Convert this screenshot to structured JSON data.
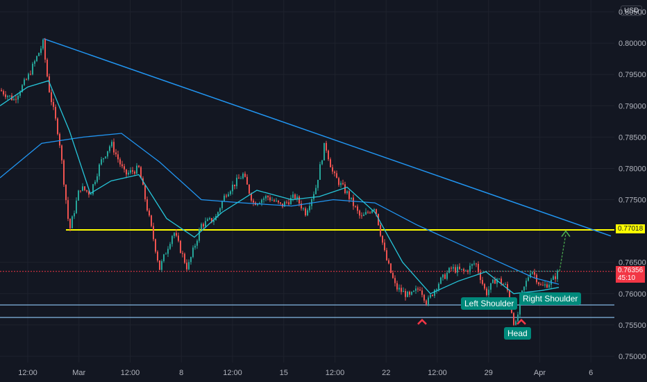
{
  "currency_button": "USD",
  "chart_data": {
    "type": "candlestick",
    "y_ticks": [
      "0.80500",
      "0.80000",
      "0.79500",
      "0.79000",
      "0.78500",
      "0.78000",
      "0.77500",
      "0.76500",
      "0.76000",
      "0.75500",
      "0.75000"
    ],
    "x_ticks": [
      "12:00",
      "Mar",
      "12:00",
      "8",
      "12:00",
      "15",
      "12:00",
      "22",
      "12:00",
      "29",
      "Apr",
      "6"
    ],
    "ylim": [
      0.749,
      0.806
    ],
    "support_level": {
      "value": 0.77018,
      "label": "0.77018",
      "color": "#ffff00"
    },
    "current_price": {
      "value": 0.76356,
      "label": "0.76356",
      "countdown": "45:10",
      "color": "#f23645"
    },
    "neckline_band": [
      0.7582,
      0.7562
    ],
    "trendline": [
      {
        "x": 63,
        "y": 0.8007
      },
      {
        "x": 880,
        "y": 0.7692
      }
    ],
    "annotations": [
      {
        "text": "Left Shoulder"
      },
      {
        "text": "Head"
      },
      {
        "text": "Right Shoulder"
      }
    ],
    "price_path": [
      [
        0,
        0.7925
      ],
      [
        20,
        0.791
      ],
      [
        40,
        0.7945
      ],
      [
        62,
        0.8
      ],
      [
        70,
        0.793
      ],
      [
        85,
        0.785
      ],
      [
        100,
        0.77
      ],
      [
        115,
        0.777
      ],
      [
        130,
        0.776
      ],
      [
        145,
        0.781
      ],
      [
        160,
        0.784
      ],
      [
        180,
        0.779
      ],
      [
        200,
        0.78
      ],
      [
        215,
        0.772
      ],
      [
        230,
        0.764
      ],
      [
        250,
        0.77
      ],
      [
        270,
        0.764
      ],
      [
        290,
        0.771
      ],
      [
        310,
        0.772
      ],
      [
        325,
        0.776
      ],
      [
        350,
        0.779
      ],
      [
        365,
        0.7745
      ],
      [
        385,
        0.7755
      ],
      [
        405,
        0.774
      ],
      [
        425,
        0.7755
      ],
      [
        440,
        0.773
      ],
      [
        455,
        0.777
      ],
      [
        468,
        0.784
      ],
      [
        480,
        0.779
      ],
      [
        500,
        0.776
      ],
      [
        520,
        0.772
      ],
      [
        540,
        0.774
      ],
      [
        555,
        0.766
      ],
      [
        570,
        0.761
      ],
      [
        590,
        0.7595
      ],
      [
        605,
        0.761
      ],
      [
        615,
        0.7585
      ],
      [
        630,
        0.7615
      ],
      [
        650,
        0.764
      ],
      [
        670,
        0.7635
      ],
      [
        685,
        0.765
      ],
      [
        700,
        0.76
      ],
      [
        715,
        0.7625
      ],
      [
        730,
        0.761
      ],
      [
        742,
        0.7545
      ],
      [
        752,
        0.76
      ],
      [
        765,
        0.764
      ],
      [
        780,
        0.761
      ],
      [
        795,
        0.762
      ],
      [
        805,
        0.7636
      ]
    ],
    "ma_fast": [
      [
        0,
        0.79
      ],
      [
        40,
        0.793
      ],
      [
        70,
        0.794
      ],
      [
        100,
        0.786
      ],
      [
        130,
        0.776
      ],
      [
        160,
        0.778
      ],
      [
        200,
        0.779
      ],
      [
        240,
        0.772
      ],
      [
        280,
        0.769
      ],
      [
        320,
        0.773
      ],
      [
        370,
        0.7765
      ],
      [
        420,
        0.775
      ],
      [
        460,
        0.7755
      ],
      [
        500,
        0.777
      ],
      [
        540,
        0.773
      ],
      [
        580,
        0.765
      ],
      [
        620,
        0.76
      ],
      [
        660,
        0.762
      ],
      [
        700,
        0.7635
      ],
      [
        740,
        0.76
      ],
      [
        780,
        0.7605
      ],
      [
        805,
        0.761
      ]
    ],
    "ma_slow": [
      [
        0,
        0.7785
      ],
      [
        60,
        0.784
      ],
      [
        120,
        0.785
      ],
      [
        175,
        0.7856
      ],
      [
        230,
        0.781
      ],
      [
        290,
        0.775
      ],
      [
        350,
        0.7745
      ],
      [
        420,
        0.774
      ],
      [
        480,
        0.775
      ],
      [
        540,
        0.7745
      ],
      [
        600,
        0.771
      ],
      [
        660,
        0.768
      ],
      [
        720,
        0.765
      ],
      [
        770,
        0.7625
      ],
      [
        805,
        0.7615
      ]
    ]
  }
}
